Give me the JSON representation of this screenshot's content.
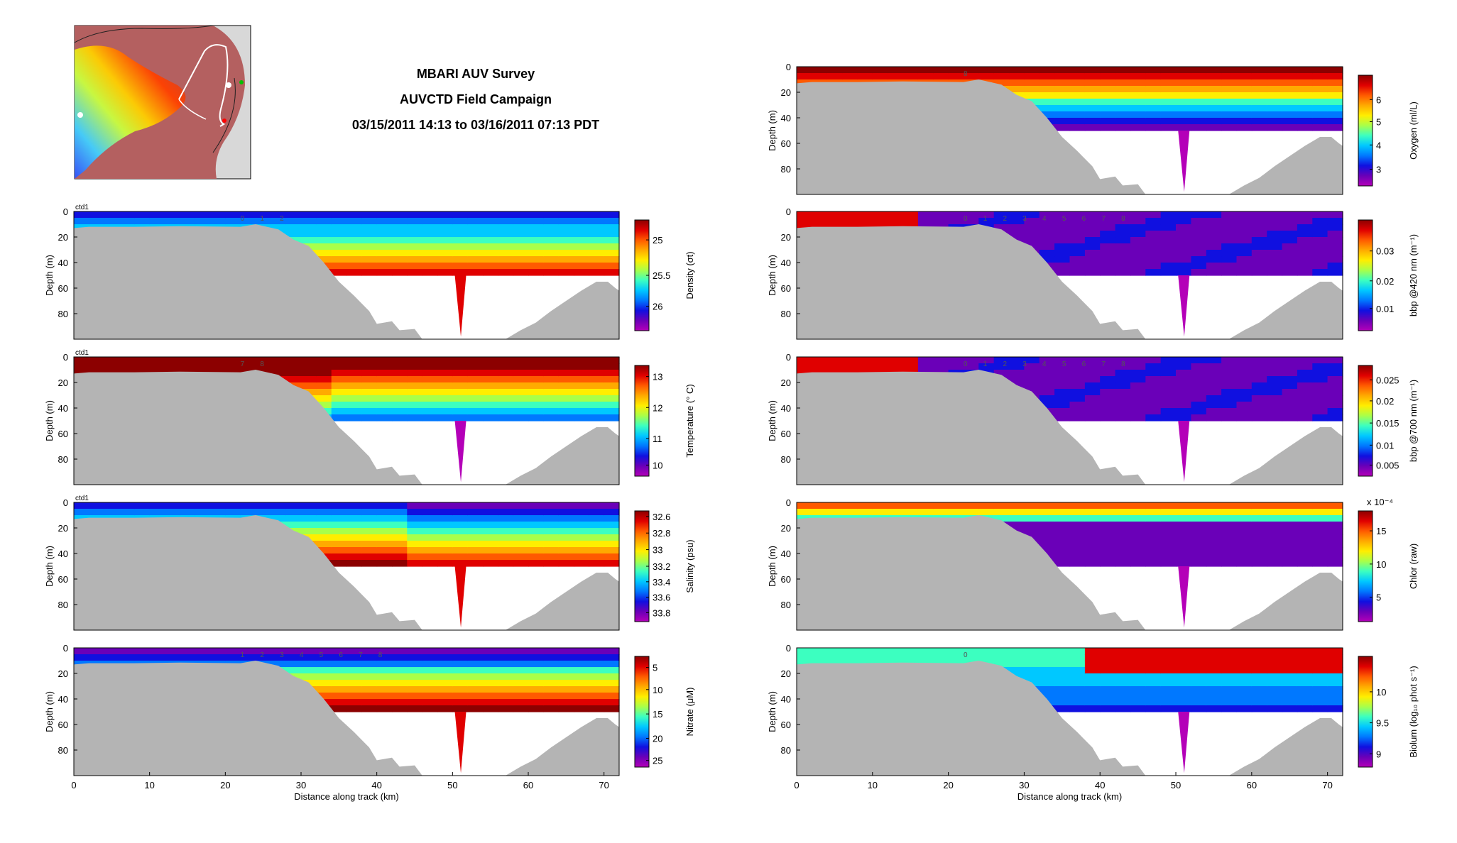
{
  "header": {
    "title": "MBARI AUV Survey",
    "subtitle": "AUVCTD Field Campaign",
    "date_range": "03/15/2011 14:13 to 03/16/2011 07:13 PDT"
  },
  "colors": {
    "bathymetry": "#b4b4b4",
    "background": "#ffffff"
  },
  "colormap": [
    "#8c0000",
    "#e00000",
    "#ff5a00",
    "#ffaa00",
    "#ffee00",
    "#a8ff4a",
    "#3cffc0",
    "#00c8ff",
    "#0078ff",
    "#1010e0",
    "#6a00b8",
    "#b400b8"
  ],
  "map_inset": {
    "labels": []
  },
  "chart_data": [
    {
      "id": "density",
      "type": "heatmap",
      "column": "left",
      "row": 0,
      "vehicle": "ctd1",
      "xlabel": "",
      "ylabel": "Depth (m)",
      "xlim": [
        0,
        72
      ],
      "ylim": [
        0,
        100
      ],
      "yticks": [
        0,
        20,
        40,
        60,
        80
      ],
      "xticks": [],
      "colorbar": {
        "label": "Density (σt)",
        "ticks": [
          "25",
          "25.5",
          "26"
        ],
        "tick_frac": [
          0.18,
          0.5,
          0.78
        ]
      },
      "stations": [
        "0",
        "1",
        "2"
      ]
    },
    {
      "id": "temperature",
      "type": "heatmap",
      "column": "left",
      "row": 1,
      "vehicle": "ctd1",
      "xlabel": "",
      "ylabel": "Depth (m)",
      "xlim": [
        0,
        72
      ],
      "ylim": [
        0,
        100
      ],
      "yticks": [
        0,
        20,
        40,
        60,
        80
      ],
      "xticks": [],
      "colorbar": {
        "label": "Temperature (° C)",
        "ticks": [
          "13",
          "12",
          "11",
          "10"
        ],
        "tick_frac": [
          0.1,
          0.38,
          0.66,
          0.9
        ]
      },
      "stations": [
        "7",
        "8"
      ]
    },
    {
      "id": "salinity",
      "type": "heatmap",
      "column": "left",
      "row": 2,
      "vehicle": "ctd1",
      "xlabel": "",
      "ylabel": "Depth (m)",
      "xlim": [
        0,
        72
      ],
      "ylim": [
        0,
        100
      ],
      "yticks": [
        0,
        20,
        40,
        60,
        80
      ],
      "xticks": [],
      "colorbar": {
        "label": "Salinity (psu)",
        "ticks": [
          "32.6",
          "32.8",
          "33",
          "33.2",
          "33.4",
          "33.6",
          "33.8"
        ],
        "tick_frac": [
          0.05,
          0.2,
          0.35,
          0.5,
          0.64,
          0.78,
          0.92
        ]
      },
      "stations": []
    },
    {
      "id": "nitrate",
      "type": "heatmap",
      "column": "left",
      "row": 3,
      "vehicle": "",
      "xlabel": "Distance along track (km)",
      "ylabel": "Depth (m)",
      "xlim": [
        0,
        72
      ],
      "ylim": [
        0,
        100
      ],
      "yticks": [
        0,
        20,
        40,
        60,
        80
      ],
      "xticks": [
        0,
        10,
        20,
        30,
        40,
        50,
        60,
        70
      ],
      "colorbar": {
        "label": "Nitrate (μM)",
        "ticks": [
          "5",
          "10",
          "15",
          "20",
          "25"
        ],
        "tick_frac": [
          0.1,
          0.3,
          0.52,
          0.74,
          0.94
        ]
      },
      "stations": [
        "1",
        "2",
        "3",
        "4",
        "5",
        "6",
        "7",
        "8"
      ]
    },
    {
      "id": "oxygen",
      "type": "heatmap",
      "column": "right",
      "row": 0,
      "vehicle": "",
      "xlabel": "",
      "ylabel": "Depth (m)",
      "xlim": [
        0,
        72
      ],
      "ylim": [
        0,
        100
      ],
      "yticks": [
        0,
        20,
        40,
        60,
        80
      ],
      "xticks": [],
      "colorbar": {
        "label": "Oxygen (ml/L)",
        "ticks": [
          "6",
          "5",
          "4",
          "3"
        ],
        "tick_frac": [
          0.22,
          0.42,
          0.63,
          0.85
        ]
      },
      "stations": [
        "8"
      ]
    },
    {
      "id": "bbp420",
      "type": "heatmap",
      "column": "right",
      "row": 1,
      "vehicle": "",
      "xlabel": "",
      "ylabel": "Depth (m)",
      "xlim": [
        0,
        72
      ],
      "ylim": [
        0,
        100
      ],
      "yticks": [
        0,
        20,
        40,
        60,
        80
      ],
      "xticks": [],
      "colorbar": {
        "label": "bbp @420 nm (m⁻¹)",
        "ticks": [
          "0.03",
          "0.02",
          "0.01"
        ],
        "tick_frac": [
          0.28,
          0.55,
          0.8
        ]
      },
      "stations": [
        "0",
        "1",
        "2",
        "3",
        "4",
        "5",
        "6",
        "7",
        "8"
      ]
    },
    {
      "id": "bbp700",
      "type": "heatmap",
      "column": "right",
      "row": 2,
      "vehicle": "",
      "xlabel": "",
      "ylabel": "Depth (m)",
      "xlim": [
        0,
        72
      ],
      "ylim": [
        0,
        100
      ],
      "yticks": [
        0,
        20,
        40,
        60,
        80
      ],
      "xticks": [],
      "colorbar": {
        "label": "bbp @700 nm (m⁻¹)",
        "ticks": [
          "0.025",
          "0.02",
          "0.015",
          "0.01",
          "0.005"
        ],
        "tick_frac": [
          0.13,
          0.32,
          0.52,
          0.72,
          0.9
        ]
      },
      "stations": [
        "0",
        "1",
        "2",
        "3",
        "4",
        "5",
        "6",
        "7",
        "8"
      ]
    },
    {
      "id": "chlor",
      "type": "heatmap",
      "column": "right",
      "row": 3,
      "vehicle": "",
      "xlabel": "",
      "ylabel": "Depth (m)",
      "xlim": [
        0,
        72
      ],
      "ylim": [
        0,
        100
      ],
      "yticks": [
        0,
        20,
        40,
        60,
        80
      ],
      "xticks": [],
      "colorbar": {
        "label": "Chlor (raw)",
        "ticks": [
          "15",
          "10",
          "5"
        ],
        "tick_frac": [
          0.18,
          0.48,
          0.78
        ],
        "exponent": "x 10⁻⁴"
      },
      "stations": []
    },
    {
      "id": "biolum",
      "type": "heatmap",
      "column": "right",
      "row": 4,
      "vehicle": "",
      "xlabel": "Distance along track (km)",
      "ylabel": "Depth (m)",
      "xlim": [
        0,
        72
      ],
      "ylim": [
        0,
        100
      ],
      "yticks": [
        0,
        20,
        40,
        60,
        80
      ],
      "xticks": [
        0,
        10,
        20,
        30,
        40,
        50,
        60,
        70
      ],
      "colorbar": {
        "label": "Biolum (log₁₀ phot s⁻¹)",
        "ticks": [
          "10",
          "9.5",
          "9"
        ],
        "tick_frac": [
          0.32,
          0.6,
          0.88
        ]
      },
      "stations": [
        "0"
      ]
    }
  ]
}
